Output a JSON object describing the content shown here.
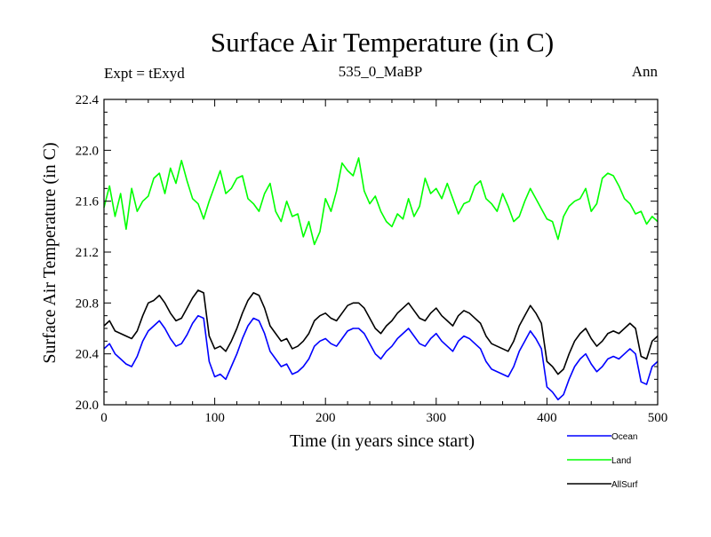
{
  "chart_data": {
    "type": "line",
    "title": "Surface Air Temperature (in C)",
    "subtitle_left": "Expt = tExyd",
    "subtitle_center": "535_0_MaBP",
    "subtitle_right": "Ann",
    "xlabel": "Time (in years since start)",
    "ylabel": "Surface Air Temperature (in C)",
    "xlim": [
      0,
      500
    ],
    "ylim": [
      20.0,
      22.4
    ],
    "x_ticks": [
      0,
      100,
      200,
      300,
      400,
      500
    ],
    "x_tick_labels": [
      "0",
      "100",
      "200",
      "300",
      "400",
      "500"
    ],
    "y_ticks": [
      20.0,
      20.4,
      20.8,
      21.2,
      21.6,
      22.0,
      22.4
    ],
    "y_tick_labels": [
      "20.0",
      "20.4",
      "20.8",
      "21.2",
      "21.6",
      "22.0",
      "22.4"
    ],
    "x_step": 5,
    "series": [
      {
        "name": "Ocean",
        "color": "#0000ff",
        "values": [
          20.44,
          20.48,
          20.4,
          20.36,
          20.32,
          20.3,
          20.38,
          20.5,
          20.58,
          20.62,
          20.66,
          20.6,
          20.52,
          20.46,
          20.48,
          20.55,
          20.64,
          20.7,
          20.68,
          20.34,
          20.22,
          20.24,
          20.2,
          20.3,
          20.4,
          20.52,
          20.62,
          20.68,
          20.66,
          20.56,
          20.42,
          20.36,
          20.3,
          20.32,
          20.24,
          20.26,
          20.3,
          20.36,
          20.46,
          20.5,
          20.52,
          20.48,
          20.46,
          20.52,
          20.58,
          20.6,
          20.6,
          20.56,
          20.48,
          20.4,
          20.36,
          20.42,
          20.46,
          20.52,
          20.56,
          20.6,
          20.54,
          20.48,
          20.46,
          20.52,
          20.56,
          20.5,
          20.46,
          20.42,
          20.5,
          20.54,
          20.52,
          20.48,
          20.44,
          20.34,
          20.28,
          20.26,
          20.24,
          20.22,
          20.3,
          20.42,
          20.5,
          20.58,
          20.52,
          20.44,
          20.14,
          20.1,
          20.04,
          20.08,
          20.2,
          20.3,
          20.36,
          20.4,
          20.32,
          20.26,
          20.3,
          20.36,
          20.38,
          20.36,
          20.4,
          20.44,
          20.4,
          20.18,
          20.16,
          20.3,
          20.34
        ]
      },
      {
        "name": "Land",
        "color": "#00ff00",
        "values": [
          21.55,
          21.72,
          21.48,
          21.66,
          21.38,
          21.7,
          21.52,
          21.6,
          21.64,
          21.78,
          21.82,
          21.66,
          21.86,
          21.74,
          21.92,
          21.76,
          21.62,
          21.58,
          21.46,
          21.6,
          21.72,
          21.84,
          21.66,
          21.7,
          21.78,
          21.8,
          21.62,
          21.58,
          21.52,
          21.66,
          21.74,
          21.52,
          21.44,
          21.6,
          21.48,
          21.5,
          21.32,
          21.44,
          21.26,
          21.36,
          21.62,
          21.52,
          21.68,
          21.9,
          21.84,
          21.8,
          21.94,
          21.68,
          21.58,
          21.64,
          21.52,
          21.44,
          21.4,
          21.5,
          21.46,
          21.62,
          21.48,
          21.56,
          21.78,
          21.66,
          21.7,
          21.62,
          21.74,
          21.62,
          21.5,
          21.58,
          21.6,
          21.72,
          21.76,
          21.62,
          21.58,
          21.52,
          21.66,
          21.56,
          21.44,
          21.48,
          21.6,
          21.7,
          21.62,
          21.54,
          21.46,
          21.44,
          21.3,
          21.48,
          21.56,
          21.6,
          21.62,
          21.7,
          21.52,
          21.58,
          21.78,
          21.82,
          21.8,
          21.72,
          21.62,
          21.58,
          21.5,
          21.52,
          21.42,
          21.48,
          21.44
        ]
      },
      {
        "name": "AllSurf",
        "color": "#000000",
        "values": [
          20.62,
          20.66,
          20.58,
          20.56,
          20.54,
          20.52,
          20.58,
          20.7,
          20.8,
          20.82,
          20.86,
          20.8,
          20.72,
          20.66,
          20.68,
          20.76,
          20.84,
          20.9,
          20.88,
          20.54,
          20.44,
          20.46,
          20.42,
          20.5,
          20.6,
          20.72,
          20.82,
          20.88,
          20.86,
          20.76,
          20.62,
          20.56,
          20.5,
          20.52,
          20.44,
          20.46,
          20.5,
          20.56,
          20.66,
          20.7,
          20.72,
          20.68,
          20.66,
          20.72,
          20.78,
          20.8,
          20.8,
          20.76,
          20.68,
          20.6,
          20.56,
          20.62,
          20.66,
          20.72,
          20.76,
          20.8,
          20.74,
          20.68,
          20.66,
          20.72,
          20.76,
          20.7,
          20.66,
          20.62,
          20.7,
          20.74,
          20.72,
          20.68,
          20.64,
          20.54,
          20.48,
          20.46,
          20.44,
          20.42,
          20.5,
          20.62,
          20.7,
          20.78,
          20.72,
          20.64,
          20.34,
          20.3,
          20.24,
          20.28,
          20.4,
          20.5,
          20.56,
          20.6,
          20.52,
          20.46,
          20.5,
          20.56,
          20.58,
          20.56,
          20.6,
          20.64,
          20.6,
          20.38,
          20.36,
          20.5,
          20.54
        ]
      }
    ],
    "legend_position": "bottom-right",
    "grid": false
  }
}
